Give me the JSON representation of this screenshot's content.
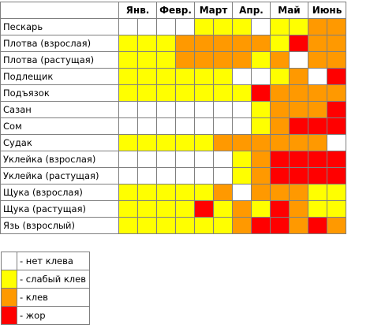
{
  "colors": {
    "none": "#ffffff",
    "weak": "#ffff00",
    "bite": "#ff9900",
    "feeding": "#ff0000"
  },
  "months": [
    "Янв.",
    "Февр.",
    "Март",
    "Апр.",
    "Май",
    "Июнь"
  ],
  "rows": [
    {
      "fish": "Пескарь",
      "cells": [
        "none",
        "none",
        "none",
        "none",
        "weak",
        "weak",
        "weak",
        "none",
        "weak",
        "weak",
        "bite",
        "bite"
      ]
    },
    {
      "fish": "Плотва (взрослая)",
      "cells": [
        "weak",
        "weak",
        "weak",
        "bite",
        "bite",
        "bite",
        "bite",
        "bite",
        "weak",
        "feeding",
        "bite",
        "bite"
      ]
    },
    {
      "fish": "Плотва (растущая)",
      "cells": [
        "weak",
        "weak",
        "weak",
        "bite",
        "bite",
        "bite",
        "bite",
        "weak",
        "bite",
        "none",
        "bite",
        "bite"
      ]
    },
    {
      "fish": "Подлещик",
      "cells": [
        "weak",
        "weak",
        "weak",
        "weak",
        "weak",
        "weak",
        "none",
        "none",
        "weak",
        "bite",
        "none",
        "feeding"
      ]
    },
    {
      "fish": "Подъязок",
      "cells": [
        "weak",
        "weak",
        "weak",
        "weak",
        "weak",
        "weak",
        "weak",
        "feeding",
        "bite",
        "bite",
        "bite",
        "bite"
      ]
    },
    {
      "fish": "Сазан",
      "cells": [
        "none",
        "none",
        "none",
        "none",
        "none",
        "none",
        "none",
        "weak",
        "bite",
        "bite",
        "bite",
        "feeding"
      ]
    },
    {
      "fish": "Сом",
      "cells": [
        "none",
        "none",
        "none",
        "none",
        "none",
        "none",
        "none",
        "weak",
        "bite",
        "feeding",
        "feeding",
        "feeding"
      ]
    },
    {
      "fish": "Судак",
      "cells": [
        "weak",
        "weak",
        "weak",
        "weak",
        "weak",
        "bite",
        "bite",
        "bite",
        "bite",
        "bite",
        "bite",
        "none"
      ]
    },
    {
      "fish": "Уклейка (взрослая)",
      "cells": [
        "none",
        "none",
        "none",
        "none",
        "none",
        "none",
        "weak",
        "bite",
        "feeding",
        "feeding",
        "feeding",
        "feeding"
      ]
    },
    {
      "fish": "Уклейка (растущая)",
      "cells": [
        "none",
        "none",
        "none",
        "none",
        "none",
        "none",
        "weak",
        "bite",
        "feeding",
        "feeding",
        "feeding",
        "feeding"
      ]
    },
    {
      "fish": "Щука (взрослая)",
      "cells": [
        "weak",
        "weak",
        "weak",
        "weak",
        "weak",
        "bite",
        "none",
        "bite",
        "bite",
        "bite",
        "weak",
        "weak"
      ]
    },
    {
      "fish": "Щука (растущая)",
      "cells": [
        "weak",
        "weak",
        "weak",
        "weak",
        "feeding",
        "weak",
        "bite",
        "weak",
        "feeding",
        "bite",
        "weak",
        "weak"
      ]
    },
    {
      "fish": "Язь (взрослый)",
      "cells": [
        "weak",
        "weak",
        "weak",
        "weak",
        "weak",
        "weak",
        "bite",
        "feeding",
        "feeding",
        "bite",
        "feeding",
        "bite"
      ]
    }
  ],
  "legend": [
    {
      "level": "none",
      "label": "- нет клева"
    },
    {
      "level": "weak",
      "label": "- слабый клев"
    },
    {
      "level": "bite",
      "label": "- клев"
    },
    {
      "level": "feeding",
      "label": "- жор"
    }
  ]
}
